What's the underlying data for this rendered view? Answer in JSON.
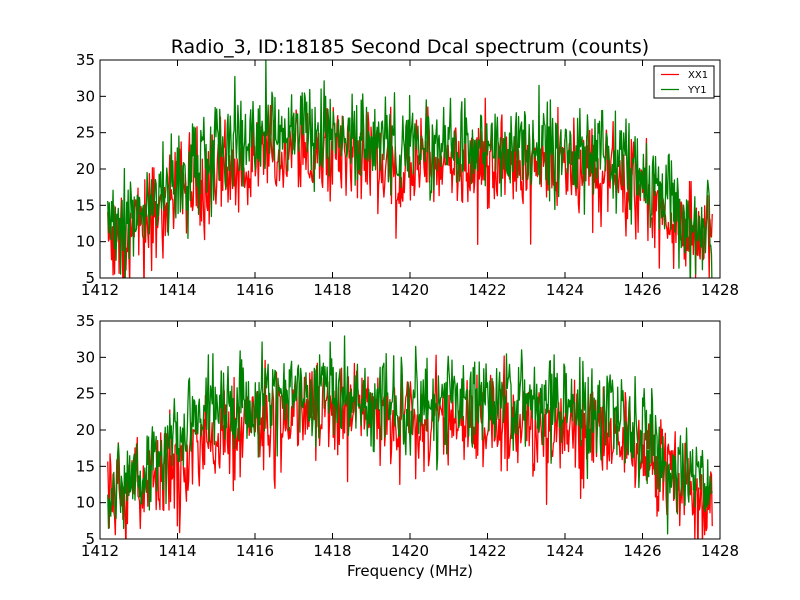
{
  "chart_data": [
    {
      "type": "line",
      "title": "Radio_3, ID:18185 Second Dcal spectrum (counts)",
      "xlabel": "",
      "ylabel": "",
      "xlim": [
        1412,
        1428
      ],
      "ylim": [
        5,
        35
      ],
      "x_ticks": [
        1412,
        1414,
        1416,
        1418,
        1420,
        1422,
        1424,
        1426,
        1428
      ],
      "y_ticks": [
        5,
        10,
        15,
        20,
        25,
        30,
        35
      ],
      "x_tick_labels": [
        "1412",
        "1414",
        "1416",
        "1418",
        "1420",
        "1422",
        "1424",
        "1426",
        "1428"
      ],
      "y_tick_labels": [
        "5",
        "10",
        "15",
        "20",
        "25",
        "30",
        "35"
      ],
      "grid": false,
      "legend_position": "top-right",
      "x_range": [
        1412.2,
        1427.8
      ],
      "series": [
        {
          "name": "XX1",
          "color": "#ff0000",
          "envelope_x": [
            1412.2,
            1413.0,
            1414.0,
            1415.0,
            1416.0,
            1417.0,
            1418.0,
            1419.0,
            1420.0,
            1421.0,
            1422.0,
            1423.0,
            1424.0,
            1425.0,
            1426.0,
            1427.0,
            1427.8
          ],
          "envelope_y": [
            10.0,
            12.0,
            16.5,
            19.5,
            21.0,
            22.5,
            22.5,
            21.5,
            21.0,
            20.5,
            20.5,
            20.5,
            20.0,
            19.5,
            16.5,
            12.0,
            10.0
          ],
          "noise_amplitude": 3.2
        },
        {
          "name": "YY1",
          "color": "#008000",
          "envelope_x": [
            1412.2,
            1413.0,
            1414.0,
            1415.0,
            1416.0,
            1417.0,
            1418.0,
            1419.0,
            1420.0,
            1421.0,
            1422.0,
            1423.0,
            1424.0,
            1425.0,
            1426.0,
            1427.0,
            1427.8
          ],
          "envelope_y": [
            11.5,
            13.5,
            19.0,
            23.0,
            24.5,
            25.5,
            25.0,
            24.5,
            24.0,
            23.5,
            23.5,
            23.5,
            23.0,
            22.5,
            19.0,
            14.0,
            11.5
          ],
          "noise_amplitude": 3.0
        }
      ]
    },
    {
      "type": "line",
      "title": "",
      "xlabel": "Frequency (MHz)",
      "ylabel": "",
      "xlim": [
        1412,
        1428
      ],
      "ylim": [
        5,
        35
      ],
      "x_ticks": [
        1412,
        1414,
        1416,
        1418,
        1420,
        1422,
        1424,
        1426,
        1428
      ],
      "y_ticks": [
        5,
        10,
        15,
        20,
        25,
        30,
        35
      ],
      "x_tick_labels": [
        "1412",
        "1414",
        "1416",
        "1418",
        "1420",
        "1422",
        "1424",
        "1426",
        "1428"
      ],
      "y_tick_labels": [
        "5",
        "10",
        "15",
        "20",
        "25",
        "30",
        "35"
      ],
      "grid": false,
      "x_range": [
        1412.2,
        1427.8
      ],
      "series": [
        {
          "color": "#ff0000",
          "envelope_x": [
            1412.2,
            1413.0,
            1414.0,
            1415.0,
            1416.0,
            1417.0,
            1418.0,
            1419.0,
            1420.0,
            1421.0,
            1422.0,
            1423.0,
            1424.0,
            1425.0,
            1426.0,
            1427.0,
            1427.8
          ],
          "envelope_y": [
            10.0,
            12.0,
            16.5,
            19.5,
            21.0,
            22.5,
            22.5,
            21.5,
            21.0,
            20.5,
            20.5,
            20.5,
            20.0,
            19.5,
            16.5,
            12.0,
            10.0
          ],
          "noise_amplitude": 3.2
        },
        {
          "color": "#008000",
          "envelope_x": [
            1412.2,
            1413.0,
            1414.0,
            1415.0,
            1416.0,
            1417.0,
            1418.0,
            1419.0,
            1420.0,
            1421.0,
            1422.0,
            1423.0,
            1424.0,
            1425.0,
            1426.0,
            1427.0,
            1427.8
          ],
          "envelope_y": [
            11.5,
            13.5,
            19.0,
            23.0,
            24.5,
            25.5,
            25.0,
            24.5,
            24.0,
            23.5,
            23.5,
            23.5,
            23.0,
            22.5,
            19.0,
            14.0,
            11.5
          ],
          "noise_amplitude": 3.0
        }
      ]
    }
  ]
}
